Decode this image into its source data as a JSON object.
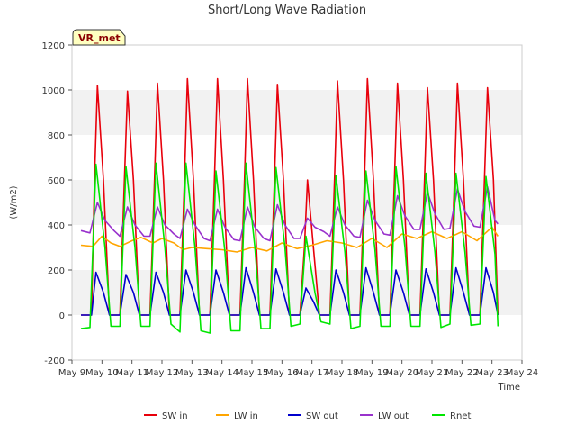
{
  "chart_data": {
    "type": "line",
    "title": "Short/Long Wave Radiation",
    "xlabel": "Time",
    "ylabel": "(W/m2)",
    "badge": "VR_met",
    "xlim": [
      9,
      24
    ],
    "ylim": [
      -200,
      1200
    ],
    "x_ticks": [
      9,
      10,
      11,
      12,
      13,
      14,
      15,
      16,
      17,
      18,
      19,
      20,
      21,
      22,
      23,
      24
    ],
    "x_tick_labels": [
      "May 9",
      "May 10",
      "May 11",
      "May 12",
      "May 13",
      "May 14",
      "May 15",
      "May 16",
      "May 17",
      "May 18",
      "May 19",
      "May 20",
      "May 21",
      "May 22",
      "May 23",
      "May 24"
    ],
    "y_ticks": [
      -200,
      0,
      200,
      400,
      600,
      800,
      1000,
      1200
    ],
    "grid": "banded-horizontal",
    "legend_position": "bottom",
    "series": [
      {
        "name": "SW in",
        "color": "#e8000b",
        "x": [
          9.3,
          9.65,
          9.75,
          9.85,
          10.05,
          10.25,
          10.6,
          10.75,
          10.85,
          11.05,
          11.25,
          11.6,
          11.75,
          11.85,
          12.05,
          12.25,
          12.6,
          12.75,
          12.85,
          13.05,
          13.25,
          13.6,
          13.75,
          13.85,
          14.05,
          14.25,
          14.6,
          14.75,
          14.85,
          15.05,
          15.25,
          15.6,
          15.75,
          15.85,
          16.05,
          16.25,
          16.6,
          16.75,
          16.85,
          17.05,
          17.25,
          17.6,
          17.75,
          17.85,
          18.05,
          18.25,
          18.6,
          18.75,
          18.85,
          19.05,
          19.25,
          19.6,
          19.75,
          19.85,
          20.05,
          20.25,
          20.6,
          20.75,
          20.85,
          21.05,
          21.25,
          21.6,
          21.75,
          21.85,
          22.05,
          22.25,
          22.6,
          22.75,
          22.85,
          23.05,
          23.2
        ],
        "y": [
          0,
          0,
          600,
          1020,
          600,
          0,
          0,
          600,
          995,
          600,
          0,
          0,
          600,
          1030,
          600,
          0,
          0,
          600,
          1050,
          600,
          0,
          0,
          600,
          1050,
          600,
          0,
          0,
          600,
          1050,
          600,
          0,
          0,
          600,
          1025,
          600,
          0,
          0,
          300,
          600,
          300,
          0,
          0,
          600,
          1040,
          600,
          0,
          0,
          600,
          1050,
          600,
          0,
          0,
          600,
          1030,
          600,
          0,
          0,
          600,
          1010,
          600,
          0,
          0,
          600,
          1030,
          600,
          0,
          0,
          600,
          1010,
          600,
          0
        ]
      },
      {
        "name": "LW in",
        "color": "#ffa500",
        "x": [
          9.3,
          9.7,
          10.0,
          10.3,
          10.6,
          11.0,
          11.3,
          11.7,
          12.0,
          12.4,
          12.7,
          13.0,
          13.5,
          14.0,
          14.5,
          15.0,
          15.5,
          16.0,
          16.5,
          17.0,
          17.5,
          18.0,
          18.5,
          19.0,
          19.5,
          20.0,
          20.5,
          21.0,
          21.5,
          22.0,
          22.5,
          23.0,
          23.2
        ],
        "y": [
          310,
          305,
          350,
          320,
          305,
          330,
          345,
          320,
          340,
          320,
          290,
          300,
          295,
          290,
          280,
          300,
          285,
          320,
          295,
          310,
          330,
          320,
          300,
          340,
          300,
          360,
          340,
          370,
          340,
          370,
          330,
          390,
          350
        ]
      },
      {
        "name": "SW out",
        "color": "#0000cd",
        "x": [
          9.3,
          9.65,
          9.8,
          10.05,
          10.25,
          10.6,
          10.8,
          11.05,
          11.25,
          11.6,
          11.8,
          12.05,
          12.25,
          12.6,
          12.8,
          13.05,
          13.25,
          13.6,
          13.8,
          14.05,
          14.25,
          14.6,
          14.8,
          15.05,
          15.25,
          15.6,
          15.8,
          16.05,
          16.25,
          16.6,
          16.8,
          17.05,
          17.25,
          17.6,
          17.8,
          18.05,
          18.25,
          18.6,
          18.8,
          19.05,
          19.25,
          19.6,
          19.8,
          20.05,
          20.25,
          20.6,
          20.8,
          21.05,
          21.25,
          21.6,
          21.8,
          22.05,
          22.25,
          22.6,
          22.8,
          23.05,
          23.2
        ],
        "y": [
          0,
          0,
          190,
          100,
          0,
          0,
          180,
          100,
          0,
          0,
          190,
          100,
          0,
          0,
          200,
          100,
          0,
          0,
          200,
          100,
          0,
          0,
          210,
          100,
          0,
          0,
          205,
          100,
          0,
          0,
          120,
          60,
          0,
          0,
          200,
          100,
          0,
          0,
          210,
          100,
          0,
          0,
          200,
          100,
          0,
          0,
          205,
          100,
          0,
          0,
          210,
          100,
          0,
          0,
          210,
          100,
          0
        ]
      },
      {
        "name": "LW out",
        "color": "#9932cc",
        "x": [
          9.3,
          9.6,
          9.85,
          10.1,
          10.4,
          10.6,
          10.85,
          11.1,
          11.4,
          11.6,
          11.85,
          12.1,
          12.4,
          12.6,
          12.85,
          13.1,
          13.4,
          13.6,
          13.85,
          14.1,
          14.4,
          14.6,
          14.85,
          15.1,
          15.4,
          15.6,
          15.85,
          16.1,
          16.4,
          16.6,
          16.85,
          17.1,
          17.4,
          17.6,
          17.85,
          18.1,
          18.4,
          18.6,
          18.85,
          19.1,
          19.4,
          19.6,
          19.85,
          20.1,
          20.4,
          20.6,
          20.85,
          21.1,
          21.4,
          21.6,
          21.85,
          22.1,
          22.4,
          22.6,
          22.85,
          23.1,
          23.2
        ],
        "y": [
          375,
          365,
          500,
          420,
          375,
          350,
          480,
          400,
          350,
          350,
          480,
          400,
          360,
          340,
          470,
          400,
          340,
          330,
          470,
          390,
          335,
          330,
          480,
          390,
          340,
          330,
          490,
          400,
          340,
          340,
          430,
          390,
          370,
          350,
          480,
          400,
          350,
          345,
          510,
          420,
          360,
          355,
          530,
          440,
          380,
          380,
          545,
          450,
          380,
          385,
          560,
          460,
          395,
          390,
          570,
          420,
          405
        ]
      },
      {
        "name": "Rnet",
        "color": "#00e600",
        "x": [
          9.3,
          9.6,
          9.8,
          10.1,
          10.3,
          10.6,
          10.8,
          11.1,
          11.3,
          11.6,
          11.8,
          12.1,
          12.3,
          12.6,
          12.8,
          13.1,
          13.3,
          13.6,
          13.8,
          14.1,
          14.3,
          14.6,
          14.8,
          15.1,
          15.3,
          15.6,
          15.8,
          16.1,
          16.3,
          16.6,
          16.8,
          17.1,
          17.3,
          17.6,
          17.8,
          18.1,
          18.3,
          18.6,
          18.8,
          19.1,
          19.3,
          19.6,
          19.8,
          20.1,
          20.3,
          20.6,
          20.8,
          21.1,
          21.3,
          21.6,
          21.8,
          22.1,
          22.3,
          22.6,
          22.8,
          23.1,
          23.2
        ],
        "y": [
          -60,
          -55,
          670,
          300,
          -50,
          -50,
          660,
          300,
          -50,
          -50,
          675,
          300,
          -40,
          -75,
          675,
          300,
          -70,
          -80,
          640,
          280,
          -70,
          -70,
          675,
          300,
          -60,
          -60,
          655,
          300,
          -50,
          -40,
          350,
          100,
          -30,
          -40,
          620,
          280,
          -60,
          -50,
          640,
          290,
          -50,
          -50,
          660,
          300,
          -50,
          -50,
          630,
          280,
          -55,
          -40,
          630,
          280,
          -45,
          -40,
          615,
          270,
          -50
        ]
      }
    ]
  }
}
